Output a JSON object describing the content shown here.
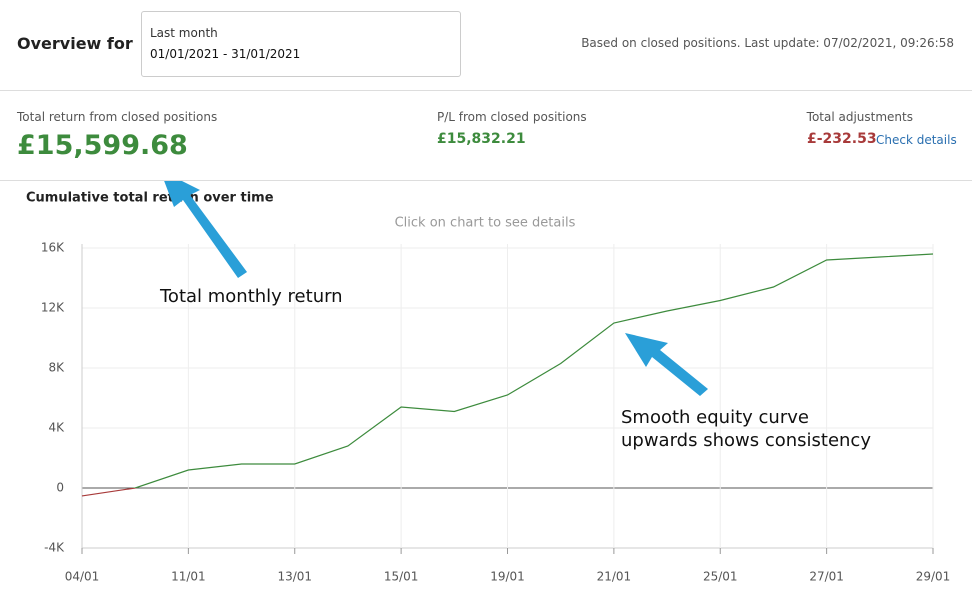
{
  "header": {
    "title": "Overview for",
    "period_label": "Last month",
    "period_range": "01/01/2021 - 31/01/2021",
    "status": "Based on closed positions. Last update: 07/02/2021, 09:26:58"
  },
  "stats": [
    {
      "label": "Total return from closed positions",
      "value": "£15,599.68"
    },
    {
      "label": "P/L from closed positions",
      "value": "£15,832.21"
    },
    {
      "label": "Total adjustments",
      "value": "£-232.53",
      "link": "Check details"
    }
  ],
  "chart_data": {
    "type": "line",
    "title": "Cumulative total return over time",
    "subtitle": "Click on chart to see details",
    "categories": [
      "04/01",
      null,
      "11/01",
      null,
      "13/01",
      null,
      "15/01",
      null,
      "19/01",
      null,
      "21/01",
      null,
      "25/01",
      null,
      "27/01",
      null,
      "29/01"
    ],
    "values": [
      -530,
      0,
      1200,
      1600,
      1600,
      2800,
      5400,
      5100,
      6200,
      8300,
      11000,
      11800,
      12500,
      13400,
      15200,
      15400,
      15600
    ],
    "color": "#3d8b3d",
    "negative_color": "#a83a3a",
    "ylim": [
      -4000,
      16000
    ],
    "yticks": [
      {
        "value": -4000,
        "label": "-4K"
      },
      0,
      {
        "value": 4000,
        "label": "4K"
      },
      {
        "value": 8000,
        "label": "8K"
      },
      {
        "value": 12000,
        "label": "12K"
      },
      {
        "value": 16000,
        "label": "16K"
      }
    ],
    "grid": true,
    "annotations": [
      "Total monthly return",
      "Smooth equity curve",
      "upwards shows consistency"
    ]
  }
}
